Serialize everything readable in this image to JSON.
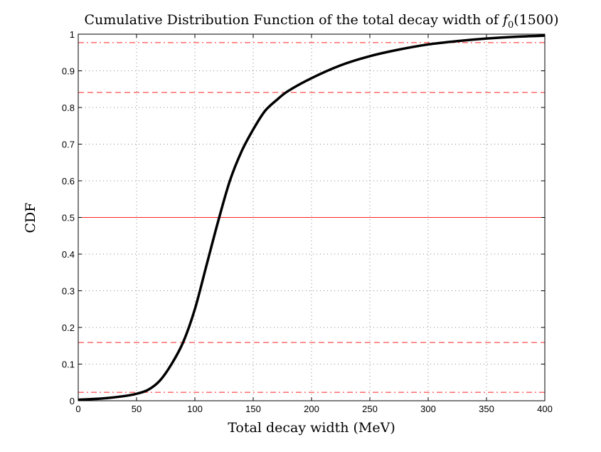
{
  "chart_data": {
    "type": "line",
    "title": "Cumulative Distribution Function of the total decay width of f0(1500)",
    "title_prefix": "Cumulative Distribution Function of the total decay width of ",
    "title_f": "f",
    "title_sub": "0",
    "title_suffix": "(1500)",
    "xlabel": "Total decay width (MeV)",
    "ylabel": "CDF",
    "xlim": [
      0,
      400
    ],
    "ylim": [
      0,
      1
    ],
    "grid": true,
    "xticks": [
      0,
      50,
      100,
      150,
      200,
      250,
      300,
      350,
      400
    ],
    "yticks": [
      0,
      0.1,
      0.2,
      0.3,
      0.4,
      0.5,
      0.6,
      0.7,
      0.8,
      0.9,
      1
    ],
    "xtick_labels": [
      "0",
      "50",
      "100",
      "150",
      "200",
      "250",
      "300",
      "350",
      "400"
    ],
    "ytick_labels": [
      "0",
      "0.1",
      "0.2",
      "0.3",
      "0.4",
      "0.5",
      "0.6",
      "0.7",
      "0.8",
      "0.9",
      "1"
    ],
    "series": [
      {
        "name": "CDF",
        "color": "#000000",
        "x": [
          0,
          20,
          40,
          50,
          60,
          70,
          80,
          90,
          100,
          110,
          120,
          130,
          140,
          150,
          160,
          170,
          180,
          200,
          225,
          250,
          275,
          300,
          325,
          350,
          375,
          400
        ],
        "y": [
          0.003,
          0.006,
          0.013,
          0.019,
          0.03,
          0.055,
          0.1,
          0.16,
          0.25,
          0.37,
          0.49,
          0.6,
          0.68,
          0.74,
          0.79,
          0.82,
          0.845,
          0.88,
          0.915,
          0.94,
          0.958,
          0.972,
          0.981,
          0.988,
          0.993,
          0.996
        ]
      }
    ],
    "reference_lines": [
      {
        "y": 0.977,
        "style": "dashdot",
        "color": "#ff2020"
      },
      {
        "y": 0.841,
        "style": "dashed",
        "color": "#ff2020"
      },
      {
        "y": 0.5,
        "style": "solid",
        "color": "#ff2020"
      },
      {
        "y": 0.159,
        "style": "dashed",
        "color": "#ff2020"
      },
      {
        "y": 0.023,
        "style": "dashdot",
        "color": "#ff2020"
      }
    ]
  }
}
